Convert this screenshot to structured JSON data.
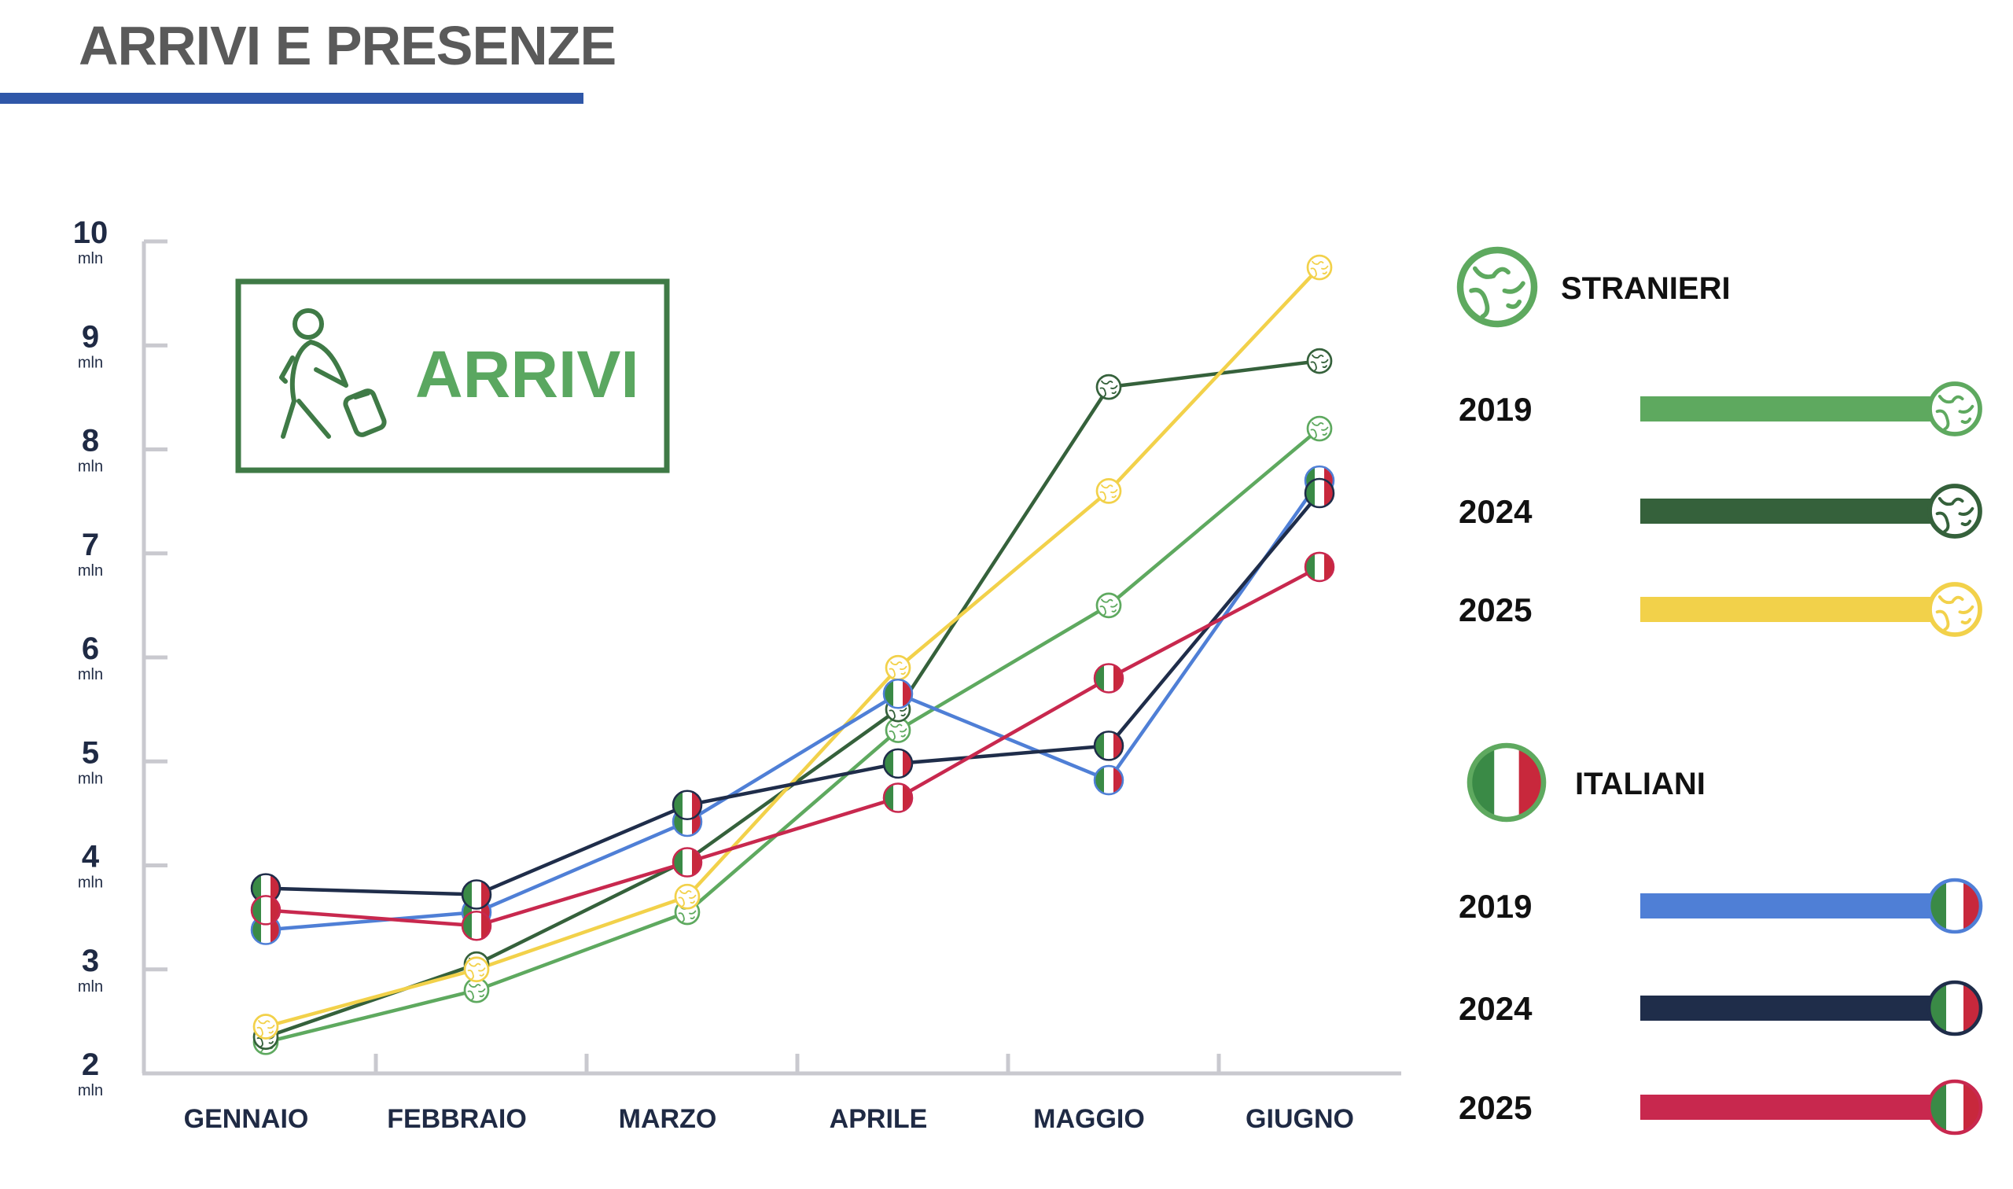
{
  "page": {
    "title": "ARRIVI E PRESENZE",
    "accent_color": "#2f57a8"
  },
  "panel": {
    "label": "ARRIVI",
    "icon": "traveler-with-suitcase-icon",
    "border_color": "#3f7a46",
    "text_color": "#5aa760"
  },
  "legend": {
    "groups": [
      {
        "title": "STRANIERI",
        "icon": "globe-icon",
        "entries": [
          {
            "year": "2019",
            "color": "#5ea95f"
          },
          {
            "year": "2024",
            "color": "#35613b"
          },
          {
            "year": "2025",
            "color": "#f2d14a"
          }
        ]
      },
      {
        "title": "ITALIANI",
        "icon": "italian-flag-icon",
        "entries": [
          {
            "year": "2019",
            "color": "#4f7fd6"
          },
          {
            "year": "2024",
            "color": "#1f2d4a"
          },
          {
            "year": "2025",
            "color": "#c8284e"
          }
        ]
      }
    ]
  },
  "chart_data": {
    "type": "line",
    "categories": [
      "GENNAIO",
      "FEBBRAIO",
      "MARZO",
      "APRILE",
      "MAGGIO",
      "GIUGNO"
    ],
    "y_ticks": [
      {
        "value": 2,
        "label": "2",
        "unit": "mln"
      },
      {
        "value": 3,
        "label": "3",
        "unit": "mln"
      },
      {
        "value": 4,
        "label": "4",
        "unit": "mln"
      },
      {
        "value": 5,
        "label": "5",
        "unit": "mln"
      },
      {
        "value": 6,
        "label": "6",
        "unit": "mln"
      },
      {
        "value": 7,
        "label": "7",
        "unit": "mln"
      },
      {
        "value": 8,
        "label": "8",
        "unit": "mln"
      },
      {
        "value": 9,
        "label": "9",
        "unit": "mln"
      },
      {
        "value": 10,
        "label": "10",
        "unit": "mln"
      }
    ],
    "ylim": [
      2,
      10
    ],
    "grid": false,
    "legend_position": "right",
    "series": [
      {
        "group": "STRANIERI",
        "year": "2019",
        "color": "#5ea95f",
        "marker": "globe",
        "values": [
          2.3,
          2.8,
          3.55,
          5.3,
          6.5,
          8.2
        ]
      },
      {
        "group": "STRANIERI",
        "year": "2024",
        "color": "#35613b",
        "marker": "globe",
        "values": [
          2.35,
          3.05,
          4.05,
          5.5,
          8.6,
          8.85
        ]
      },
      {
        "group": "STRANIERI",
        "year": "2025",
        "color": "#f2d14a",
        "marker": "globe",
        "values": [
          2.45,
          3.0,
          3.7,
          5.9,
          7.6,
          9.75
        ]
      },
      {
        "group": "ITALIANI",
        "year": "2019",
        "color": "#4f7fd6",
        "marker": "flag",
        "values": [
          3.38,
          3.55,
          4.42,
          5.65,
          4.82,
          7.7
        ]
      },
      {
        "group": "ITALIANI",
        "year": "2024",
        "color": "#1f2d4a",
        "marker": "flag",
        "values": [
          3.78,
          3.72,
          4.58,
          4.98,
          5.15,
          7.58
        ]
      },
      {
        "group": "ITALIANI",
        "year": "2025",
        "color": "#c8284e",
        "marker": "flag",
        "values": [
          3.57,
          3.42,
          4.03,
          4.65,
          5.8,
          6.87
        ]
      }
    ]
  }
}
